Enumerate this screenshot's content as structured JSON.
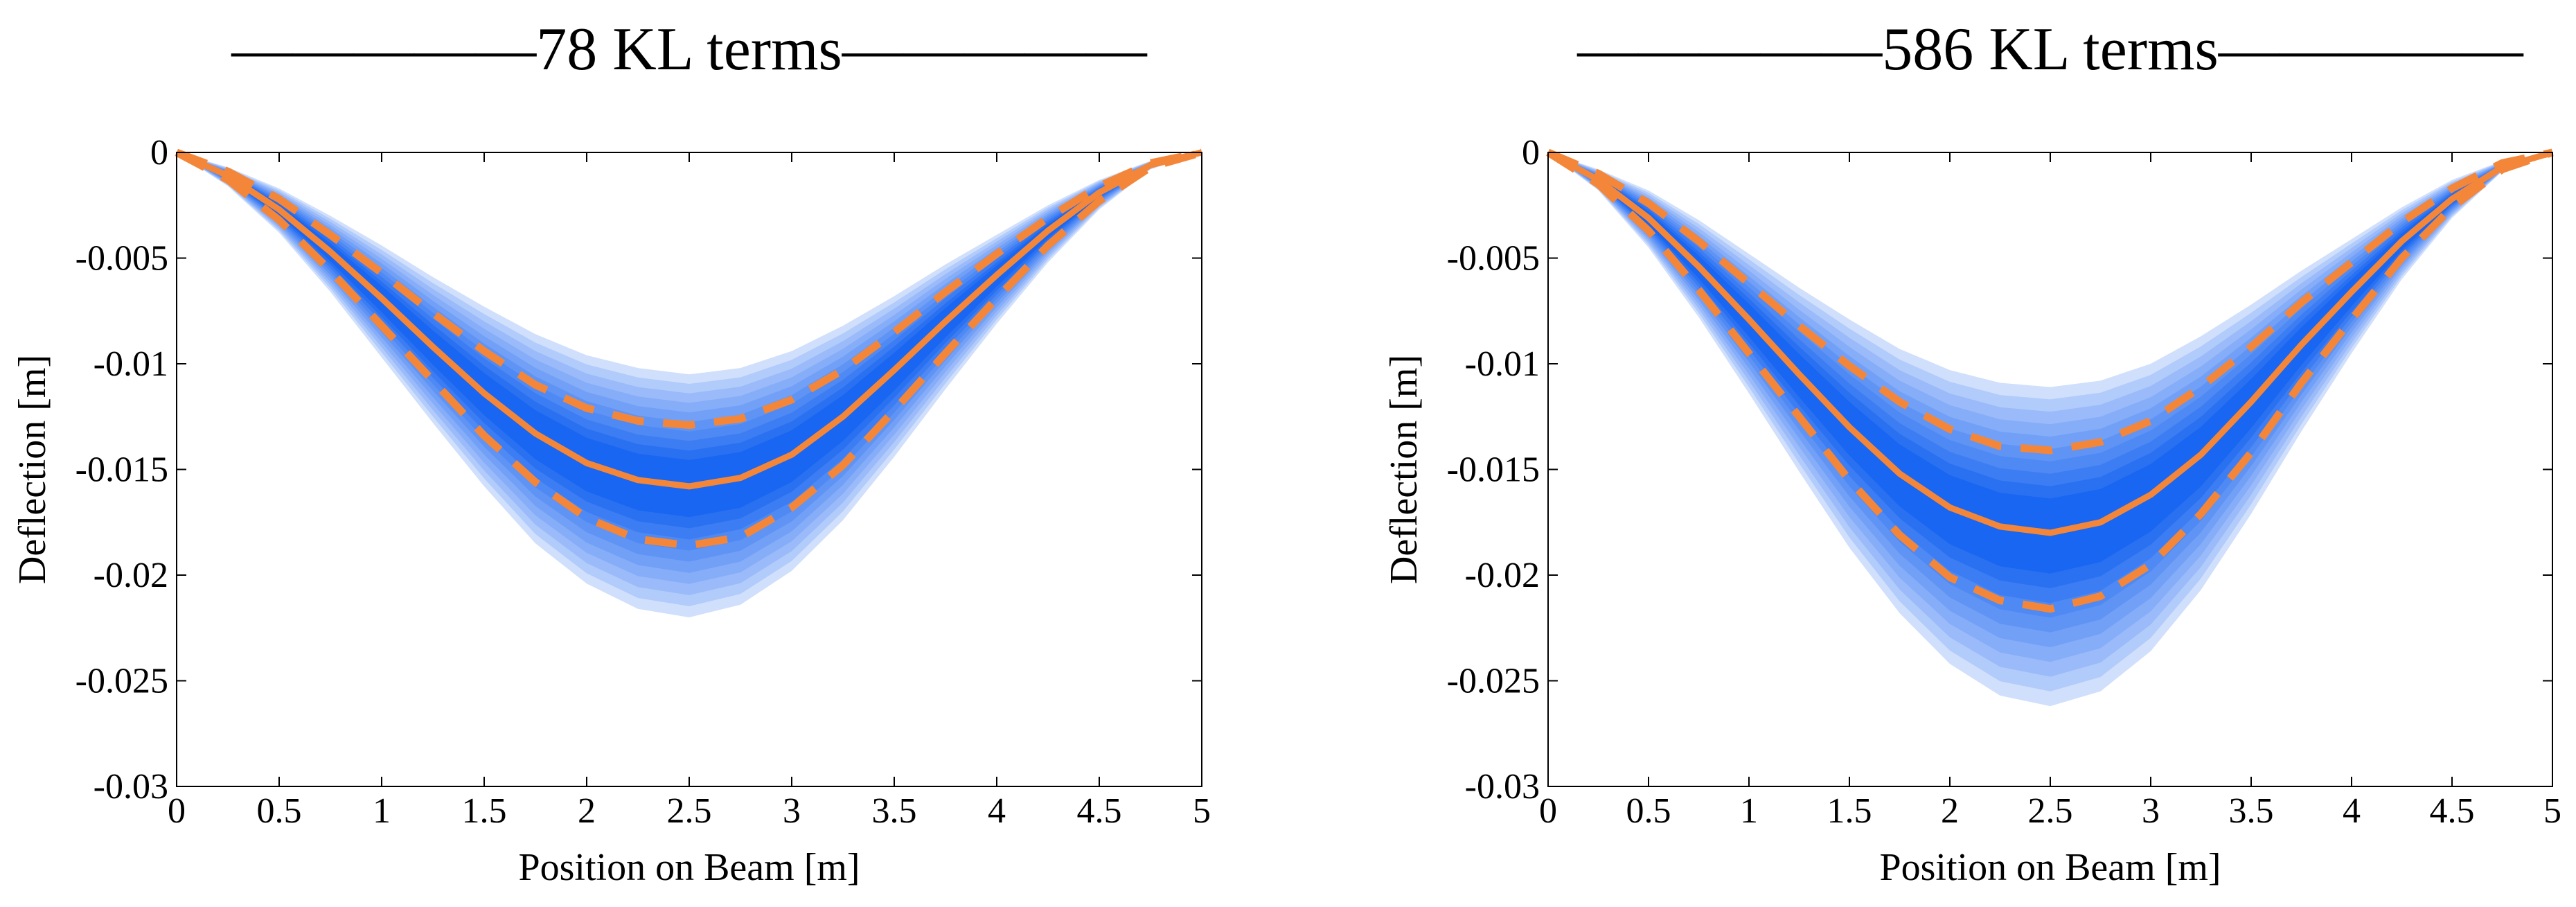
{
  "figure": {
    "description_free": true
  },
  "colors": {
    "band_base": "#0a5cf0",
    "band_light": "#bcd0fb",
    "mean_line": "#f4863a",
    "quantile_line": "#f4863a",
    "axis": "#000000"
  },
  "chart_data": [
    {
      "type": "area",
      "title": "—————78 KL terms—————",
      "xlabel": "Position on Beam [m]",
      "ylabel": "Deflection [m]",
      "xlim": [
        0,
        5
      ],
      "ylim": [
        -0.03,
        0
      ],
      "xticks": [
        0,
        0.5,
        1,
        1.5,
        2,
        2.5,
        3,
        3.5,
        4,
        4.5,
        5
      ],
      "xtick_labels": [
        "0",
        "0.5",
        "1",
        "1.5",
        "2",
        "2.5",
        "3",
        "3.5",
        "4",
        "4.5",
        "5"
      ],
      "yticks": [
        0,
        -0.005,
        -0.01,
        -0.015,
        -0.02,
        -0.025,
        -0.03
      ],
      "ytick_labels": [
        "0",
        "-0.005",
        "-0.01",
        "-0.015",
        "-0.02",
        "-0.025",
        "-0.03"
      ],
      "grid": false,
      "x": [
        0,
        0.25,
        0.5,
        0.75,
        1,
        1.25,
        1.5,
        1.75,
        2,
        2.25,
        2.5,
        2.75,
        3,
        3.25,
        3.5,
        3.75,
        4,
        4.25,
        4.5,
        4.75,
        5
      ],
      "series": [
        {
          "name": "mean",
          "style": "solid",
          "values": [
            0,
            -0.0011,
            -0.0027,
            -0.0047,
            -0.0069,
            -0.0092,
            -0.0114,
            -0.0133,
            -0.0147,
            -0.0155,
            -0.0158,
            -0.0154,
            -0.0143,
            -0.0125,
            -0.0103,
            -0.008,
            -0.0058,
            -0.0037,
            -0.0019,
            -0.0006,
            0
          ]
        },
        {
          "name": "upper quantile",
          "style": "dashed",
          "values": [
            0,
            -0.0009,
            -0.0022,
            -0.0039,
            -0.0057,
            -0.0076,
            -0.0094,
            -0.011,
            -0.0121,
            -0.0127,
            -0.0129,
            -0.0126,
            -0.0117,
            -0.0103,
            -0.0085,
            -0.0066,
            -0.0048,
            -0.0031,
            -0.0016,
            -0.0005,
            0
          ]
        },
        {
          "name": "lower quantile",
          "style": "dashed",
          "values": [
            0,
            -0.0013,
            -0.0032,
            -0.0056,
            -0.0082,
            -0.0108,
            -0.0134,
            -0.0156,
            -0.0173,
            -0.0183,
            -0.0186,
            -0.0182,
            -0.0168,
            -0.0148,
            -0.0122,
            -0.0095,
            -0.0069,
            -0.0044,
            -0.0023,
            -0.0007,
            0
          ]
        }
      ],
      "envelope": {
        "upper": [
          0,
          -0.0007,
          -0.0017,
          -0.003,
          -0.0044,
          -0.0059,
          -0.0073,
          -0.0086,
          -0.0096,
          -0.0102,
          -0.0105,
          -0.0102,
          -0.0094,
          -0.0082,
          -0.0068,
          -0.0053,
          -0.0039,
          -0.0025,
          -0.0013,
          -0.0004,
          0
        ],
        "lower": [
          0,
          -0.0016,
          -0.0038,
          -0.0066,
          -0.0097,
          -0.0128,
          -0.0158,
          -0.0185,
          -0.0204,
          -0.0216,
          -0.022,
          -0.0214,
          -0.0198,
          -0.0174,
          -0.0144,
          -0.0112,
          -0.0081,
          -0.0052,
          -0.0027,
          -0.0008,
          0
        ]
      }
    },
    {
      "type": "area",
      "title": "—————586 KL terms—————",
      "xlabel": "Position on Beam [m]",
      "ylabel": "Deflection [m]",
      "xlim": [
        0,
        5
      ],
      "ylim": [
        -0.03,
        0
      ],
      "xticks": [
        0,
        0.5,
        1,
        1.5,
        2,
        2.5,
        3,
        3.5,
        4,
        4.5,
        5
      ],
      "xtick_labels": [
        "0",
        "0.5",
        "1",
        "1.5",
        "2",
        "2.5",
        "3",
        "3.5",
        "4",
        "4.5",
        "5"
      ],
      "yticks": [
        0,
        -0.005,
        -0.01,
        -0.015,
        -0.02,
        -0.025,
        -0.03
      ],
      "ytick_labels": [
        "0",
        "-0.005",
        "-0.01",
        "-0.015",
        "-0.02",
        "-0.025",
        "-0.03"
      ],
      "grid": false,
      "x": [
        0,
        0.25,
        0.5,
        0.75,
        1,
        1.25,
        1.5,
        1.75,
        2,
        2.25,
        2.5,
        2.75,
        3,
        3.25,
        3.5,
        3.75,
        4,
        4.25,
        4.5,
        4.75,
        5
      ],
      "series": [
        {
          "name": "mean",
          "style": "solid",
          "values": [
            0,
            -0.0013,
            -0.0031,
            -0.0054,
            -0.0079,
            -0.0105,
            -0.013,
            -0.0152,
            -0.0168,
            -0.0177,
            -0.018,
            -0.0175,
            -0.0162,
            -0.0143,
            -0.0118,
            -0.0091,
            -0.0066,
            -0.0042,
            -0.0022,
            -0.0007,
            0
          ]
        },
        {
          "name": "upper quantile",
          "style": "dashed",
          "values": [
            0,
            -0.001,
            -0.0024,
            -0.0042,
            -0.0062,
            -0.0082,
            -0.0101,
            -0.0118,
            -0.0131,
            -0.0139,
            -0.0141,
            -0.0137,
            -0.0127,
            -0.0111,
            -0.0092,
            -0.0071,
            -0.0052,
            -0.0033,
            -0.0017,
            -0.0005,
            0
          ]
        },
        {
          "name": "lower quantile",
          "style": "dashed",
          "values": [
            0,
            -0.0015,
            -0.0037,
            -0.0065,
            -0.0095,
            -0.0125,
            -0.0155,
            -0.0181,
            -0.0201,
            -0.0212,
            -0.0216,
            -0.021,
            -0.0195,
            -0.0171,
            -0.0142,
            -0.0109,
            -0.0079,
            -0.005,
            -0.0026,
            -0.0008,
            0
          ]
        }
      ],
      "envelope": {
        "upper": [
          0,
          -0.0008,
          -0.0018,
          -0.0032,
          -0.0048,
          -0.0064,
          -0.0079,
          -0.0093,
          -0.0103,
          -0.0109,
          -0.0111,
          -0.0108,
          -0.01,
          -0.0087,
          -0.0072,
          -0.0056,
          -0.0041,
          -0.0026,
          -0.0013,
          -0.0004,
          0
        ],
        "lower": [
          0,
          -0.0018,
          -0.0045,
          -0.0078,
          -0.0114,
          -0.0151,
          -0.0187,
          -0.0218,
          -0.0242,
          -0.0257,
          -0.0262,
          -0.0255,
          -0.0236,
          -0.0207,
          -0.0171,
          -0.0132,
          -0.0095,
          -0.006,
          -0.0031,
          -0.0009,
          0
        ]
      }
    }
  ]
}
